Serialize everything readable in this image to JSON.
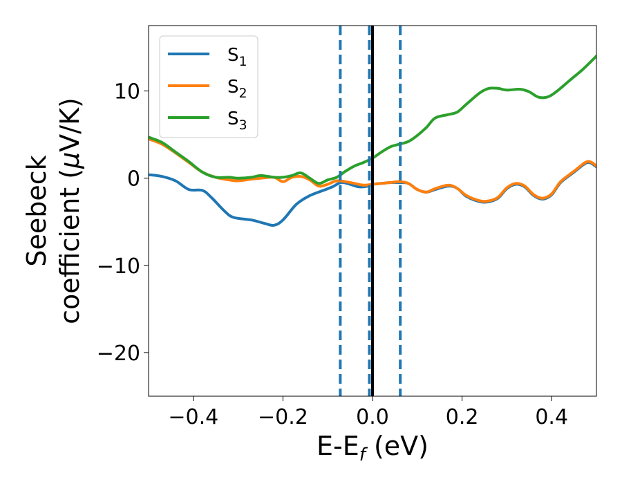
{
  "chart_data": {
    "type": "line",
    "xlabel": "E-E",
    "xlabel_sub": "f",
    "xlabel_unit": " (eV)",
    "ylabel_line1": "Seebeck",
    "ylabel_line2_prefix": "coefficient  (",
    "ylabel_mu": "μ",
    "ylabel_line2_suffix": "V/K)",
    "xlim": [
      -0.5,
      0.5
    ],
    "ylim": [
      -25,
      17.5
    ],
    "xticks": [
      -0.4,
      -0.2,
      0.0,
      0.2,
      0.4
    ],
    "xtick_labels": [
      "−0.4",
      "−0.2",
      "0.0",
      "0.2",
      "0.4"
    ],
    "yticks": [
      -20,
      -10,
      0,
      10
    ],
    "ytick_labels": [
      "−20",
      "−10",
      "0",
      "10"
    ],
    "grid": false,
    "legend_position": "top-left",
    "vlines": [
      {
        "x": -0.072,
        "style": "dashed",
        "color": "#1f77b4"
      },
      {
        "x": -0.007,
        "style": "dashed",
        "color": "#1f77b4"
      },
      {
        "x": 0.062,
        "style": "dashed",
        "color": "#1f77b4"
      },
      {
        "x": 0.0,
        "style": "solid",
        "color": "#000000"
      }
    ],
    "series": [
      {
        "name": "S",
        "sub": "1",
        "color": "#1f77b4",
        "points": [
          [
            -0.5,
            0.4
          ],
          [
            -0.47,
            0.2
          ],
          [
            -0.44,
            -0.3
          ],
          [
            -0.41,
            -1.3
          ],
          [
            -0.38,
            -1.4
          ],
          [
            -0.36,
            -2.2
          ],
          [
            -0.33,
            -3.8
          ],
          [
            -0.31,
            -4.5
          ],
          [
            -0.27,
            -4.8
          ],
          [
            -0.24,
            -5.2
          ],
          [
            -0.22,
            -5.4
          ],
          [
            -0.2,
            -4.8
          ],
          [
            -0.17,
            -3.0
          ],
          [
            -0.14,
            -2.0
          ],
          [
            -0.11,
            -1.4
          ],
          [
            -0.09,
            -1.0
          ],
          [
            -0.07,
            -0.5
          ],
          [
            -0.05,
            -0.7
          ],
          [
            -0.03,
            -1.0
          ],
          [
            -0.01,
            -0.9
          ],
          [
            0.0,
            -0.7
          ],
          [
            0.02,
            -0.6
          ],
          [
            0.04,
            -0.5
          ],
          [
            0.06,
            -0.5
          ],
          [
            0.08,
            -0.6
          ],
          [
            0.1,
            -1.3
          ],
          [
            0.12,
            -1.6
          ],
          [
            0.14,
            -1.3
          ],
          [
            0.17,
            -0.9
          ],
          [
            0.19,
            -1.2
          ],
          [
            0.21,
            -2.1
          ],
          [
            0.24,
            -2.7
          ],
          [
            0.26,
            -2.7
          ],
          [
            0.28,
            -2.3
          ],
          [
            0.3,
            -1.2
          ],
          [
            0.32,
            -0.7
          ],
          [
            0.34,
            -1.0
          ],
          [
            0.36,
            -2.0
          ],
          [
            0.38,
            -2.4
          ],
          [
            0.4,
            -1.9
          ],
          [
            0.42,
            -0.5
          ],
          [
            0.45,
            0.7
          ],
          [
            0.48,
            1.8
          ],
          [
            0.5,
            1.3
          ]
        ]
      },
      {
        "name": "S",
        "sub": "2",
        "color": "#ff7f0e",
        "points": [
          [
            -0.5,
            4.5
          ],
          [
            -0.47,
            3.9
          ],
          [
            -0.44,
            2.9
          ],
          [
            -0.41,
            1.8
          ],
          [
            -0.38,
            0.7
          ],
          [
            -0.35,
            0.1
          ],
          [
            -0.32,
            -0.2
          ],
          [
            -0.3,
            -0.3
          ],
          [
            -0.27,
            -0.1
          ],
          [
            -0.25,
            0.0
          ],
          [
            -0.22,
            0.1
          ],
          [
            -0.2,
            -0.4
          ],
          [
            -0.18,
            0.1
          ],
          [
            -0.16,
            0.2
          ],
          [
            -0.14,
            -0.2
          ],
          [
            -0.12,
            -0.9
          ],
          [
            -0.1,
            -0.7
          ],
          [
            -0.08,
            -0.3
          ],
          [
            -0.06,
            -0.4
          ],
          [
            -0.04,
            -0.6
          ],
          [
            -0.02,
            -0.8
          ],
          [
            0.0,
            -0.7
          ],
          [
            0.02,
            -0.6
          ],
          [
            0.04,
            -0.5
          ],
          [
            0.06,
            -0.4
          ],
          [
            0.08,
            -0.6
          ],
          [
            0.1,
            -1.3
          ],
          [
            0.12,
            -1.6
          ],
          [
            0.14,
            -1.2
          ],
          [
            0.17,
            -0.8
          ],
          [
            0.19,
            -1.2
          ],
          [
            0.21,
            -2.0
          ],
          [
            0.24,
            -2.6
          ],
          [
            0.26,
            -2.6
          ],
          [
            0.28,
            -2.2
          ],
          [
            0.3,
            -1.1
          ],
          [
            0.32,
            -0.6
          ],
          [
            0.34,
            -0.9
          ],
          [
            0.36,
            -1.9
          ],
          [
            0.38,
            -2.3
          ],
          [
            0.4,
            -1.8
          ],
          [
            0.42,
            -0.4
          ],
          [
            0.45,
            0.8
          ],
          [
            0.48,
            1.9
          ],
          [
            0.5,
            1.4
          ]
        ]
      },
      {
        "name": "S",
        "sub": "3",
        "color": "#2ca02c",
        "points": [
          [
            -0.5,
            4.7
          ],
          [
            -0.47,
            4.1
          ],
          [
            -0.44,
            3.0
          ],
          [
            -0.41,
            1.9
          ],
          [
            -0.38,
            0.7
          ],
          [
            -0.35,
            0.1
          ],
          [
            -0.32,
            0.1
          ],
          [
            -0.3,
            0.0
          ],
          [
            -0.27,
            0.1
          ],
          [
            -0.25,
            0.3
          ],
          [
            -0.22,
            0.1
          ],
          [
            -0.2,
            0.1
          ],
          [
            -0.18,
            0.3
          ],
          [
            -0.16,
            0.6
          ],
          [
            -0.14,
            0.0
          ],
          [
            -0.12,
            -0.6
          ],
          [
            -0.1,
            -0.2
          ],
          [
            -0.08,
            0.1
          ],
          [
            -0.06,
            0.8
          ],
          [
            -0.04,
            1.4
          ],
          [
            -0.02,
            1.8
          ],
          [
            0.0,
            2.3
          ],
          [
            0.02,
            3.0
          ],
          [
            0.04,
            3.6
          ],
          [
            0.06,
            3.9
          ],
          [
            0.08,
            4.2
          ],
          [
            0.1,
            4.9
          ],
          [
            0.12,
            5.8
          ],
          [
            0.14,
            6.9
          ],
          [
            0.17,
            7.3
          ],
          [
            0.19,
            7.6
          ],
          [
            0.21,
            8.5
          ],
          [
            0.24,
            9.8
          ],
          [
            0.26,
            10.3
          ],
          [
            0.28,
            10.3
          ],
          [
            0.3,
            10.1
          ],
          [
            0.33,
            10.2
          ],
          [
            0.35,
            9.9
          ],
          [
            0.37,
            9.3
          ],
          [
            0.39,
            9.3
          ],
          [
            0.41,
            9.9
          ],
          [
            0.44,
            11.2
          ],
          [
            0.47,
            12.5
          ],
          [
            0.5,
            14.0
          ]
        ]
      }
    ]
  }
}
